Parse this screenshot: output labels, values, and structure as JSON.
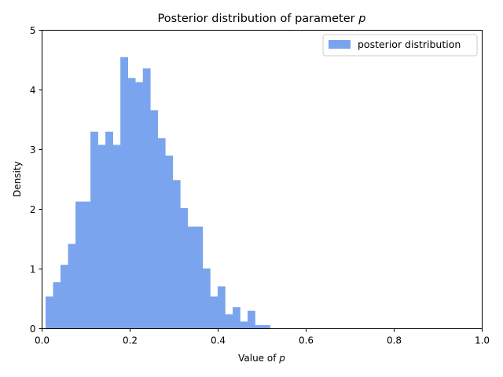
{
  "chart_data": {
    "type": "bar",
    "title": "Posterior distribution of parameter ",
    "title_var": "p",
    "xlabel": "Value of ",
    "xlabel_var": "p",
    "ylabel": "Density",
    "xlim": [
      0,
      1
    ],
    "ylim": [
      0,
      5
    ],
    "xticks": [
      "0.0",
      "0.2",
      "0.4",
      "0.6",
      "0.8",
      "1.0"
    ],
    "yticks": [
      "0",
      "1",
      "2",
      "3",
      "4",
      "5"
    ],
    "grid": false,
    "legend_position": "top-right",
    "bin_width": 0.017,
    "series": [
      {
        "name": "posterior distribution",
        "color": "#7ba4ee",
        "bins": [
          {
            "x0": 0.008,
            "x1": 0.025,
            "value": 0.54
          },
          {
            "x0": 0.025,
            "x1": 0.042,
            "value": 0.78
          },
          {
            "x0": 0.042,
            "x1": 0.059,
            "value": 1.07
          },
          {
            "x0": 0.059,
            "x1": 0.076,
            "value": 1.42
          },
          {
            "x0": 0.076,
            "x1": 0.093,
            "value": 2.13
          },
          {
            "x0": 0.093,
            "x1": 0.11,
            "value": 2.13
          },
          {
            "x0": 0.11,
            "x1": 0.127,
            "value": 3.3
          },
          {
            "x0": 0.127,
            "x1": 0.144,
            "value": 3.08
          },
          {
            "x0": 0.144,
            "x1": 0.161,
            "value": 3.3
          },
          {
            "x0": 0.161,
            "x1": 0.178,
            "value": 3.08
          },
          {
            "x0": 0.178,
            "x1": 0.195,
            "value": 4.55
          },
          {
            "x0": 0.195,
            "x1": 0.212,
            "value": 4.2
          },
          {
            "x0": 0.212,
            "x1": 0.229,
            "value": 4.13
          },
          {
            "x0": 0.229,
            "x1": 0.246,
            "value": 4.36
          },
          {
            "x0": 0.246,
            "x1": 0.263,
            "value": 3.66
          },
          {
            "x0": 0.263,
            "x1": 0.28,
            "value": 3.19
          },
          {
            "x0": 0.28,
            "x1": 0.297,
            "value": 2.9
          },
          {
            "x0": 0.297,
            "x1": 0.314,
            "value": 2.49
          },
          {
            "x0": 0.314,
            "x1": 0.331,
            "value": 2.02
          },
          {
            "x0": 0.331,
            "x1": 0.348,
            "value": 1.71
          },
          {
            "x0": 0.348,
            "x1": 0.365,
            "value": 1.71
          },
          {
            "x0": 0.365,
            "x1": 0.382,
            "value": 1.01
          },
          {
            "x0": 0.382,
            "x1": 0.399,
            "value": 0.54
          },
          {
            "x0": 0.399,
            "x1": 0.416,
            "value": 0.71
          },
          {
            "x0": 0.416,
            "x1": 0.433,
            "value": 0.24
          },
          {
            "x0": 0.433,
            "x1": 0.45,
            "value": 0.36
          },
          {
            "x0": 0.45,
            "x1": 0.467,
            "value": 0.12
          },
          {
            "x0": 0.467,
            "x1": 0.484,
            "value": 0.3
          },
          {
            "x0": 0.484,
            "x1": 0.501,
            "value": 0.06
          },
          {
            "x0": 0.501,
            "x1": 0.518,
            "value": 0.06
          }
        ]
      }
    ]
  }
}
